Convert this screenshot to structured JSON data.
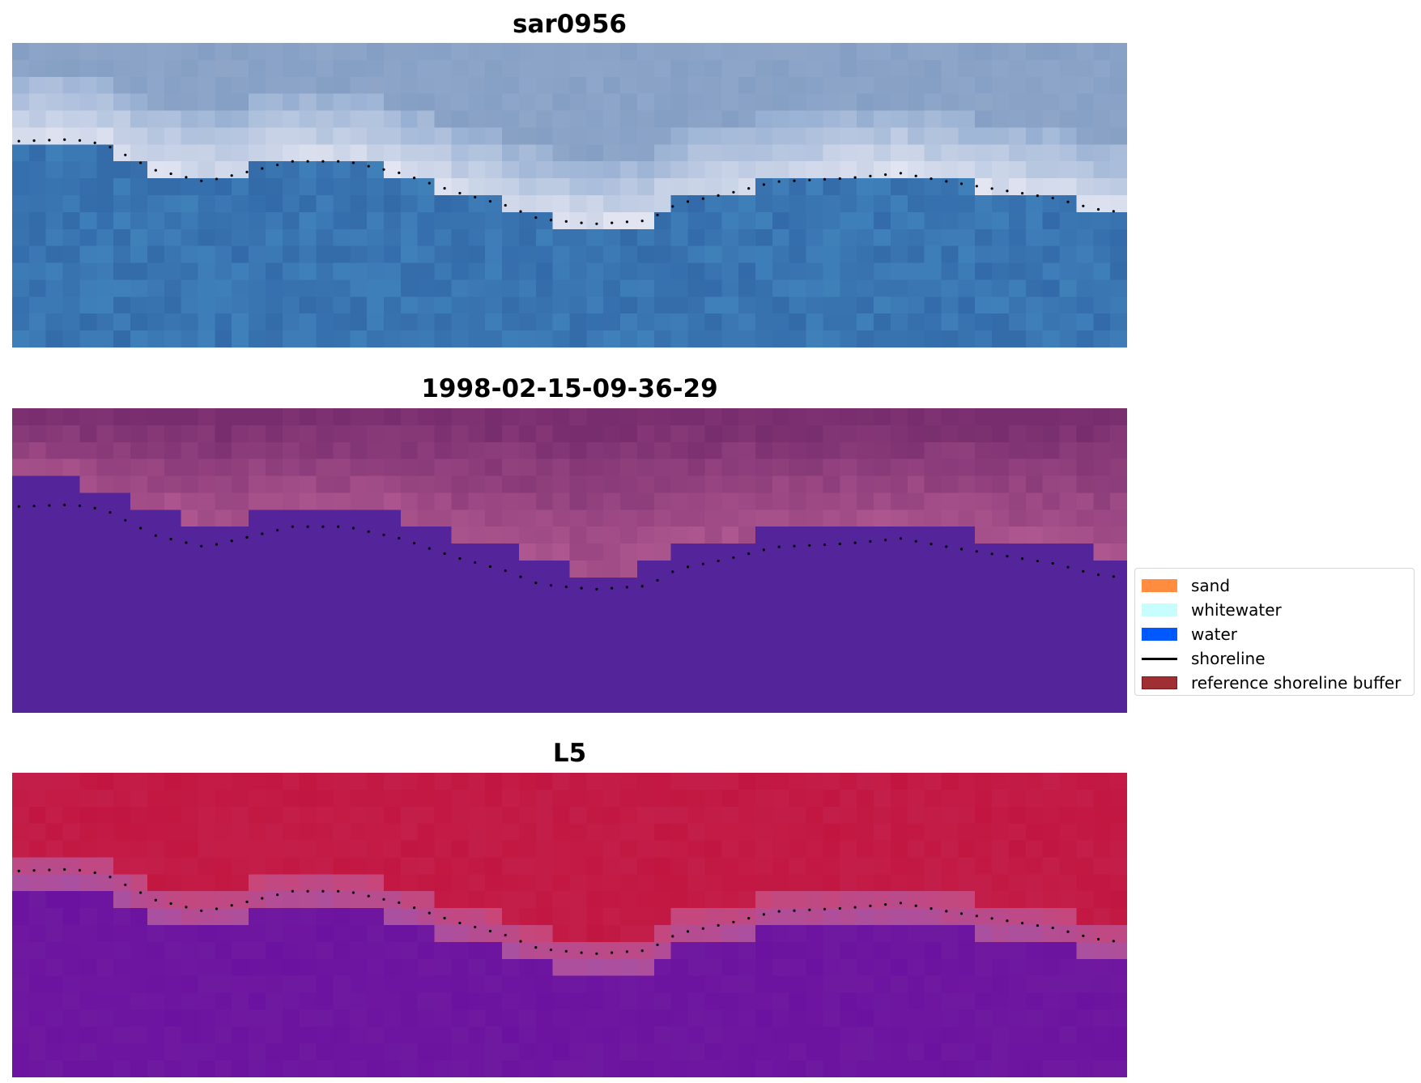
{
  "panels": [
    {
      "title": "sar0956",
      "kind": "rgb"
    },
    {
      "title": "1998-02-15-09-36-29",
      "kind": "classified"
    },
    {
      "title": "L5",
      "kind": "index"
    }
  ],
  "image_grid": {
    "cols": 66,
    "rows": 18
  },
  "classified_water_top_row": [
    [
      0,
      4,
      4
    ],
    [
      4,
      7,
      5
    ],
    [
      7,
      10,
      6
    ],
    [
      10,
      14,
      7
    ],
    [
      14,
      23,
      6
    ],
    [
      23,
      26,
      7
    ],
    [
      26,
      30,
      8
    ],
    [
      30,
      33,
      9
    ],
    [
      33,
      37,
      10
    ],
    [
      37,
      39,
      9
    ],
    [
      39,
      44,
      8
    ],
    [
      44,
      57,
      7
    ],
    [
      57,
      64,
      8
    ],
    [
      64,
      66,
      9
    ]
  ],
  "shoreline_pixels": [
    [
      0.4,
      5.8
    ],
    [
      3.6,
      5.7
    ],
    [
      5.5,
      6.0
    ],
    [
      8.4,
      7.5
    ],
    [
      11.4,
      8.2
    ],
    [
      13.6,
      7.7
    ],
    [
      16.6,
      7.0
    ],
    [
      19.8,
      7.0
    ],
    [
      23.0,
      7.7
    ],
    [
      26.2,
      8.8
    ],
    [
      29.2,
      9.6
    ],
    [
      31.2,
      10.4
    ],
    [
      34.4,
      10.7
    ],
    [
      37.6,
      10.5
    ],
    [
      39.4,
      9.5
    ],
    [
      42.4,
      8.9
    ],
    [
      45.2,
      8.2
    ],
    [
      49.4,
      8.0
    ],
    [
      52.6,
      7.7
    ],
    [
      55.4,
      8.2
    ],
    [
      58.6,
      8.7
    ],
    [
      61.8,
      9.2
    ],
    [
      64.0,
      9.8
    ],
    [
      65.6,
      10.0
    ]
  ],
  "legend": {
    "items": [
      {
        "label": "sand",
        "type": "patch",
        "color": "#ff8c3f"
      },
      {
        "label": "whitewater",
        "type": "patch",
        "color": "#c8fdfd"
      },
      {
        "label": "water",
        "type": "patch",
        "color": "#0059ff"
      },
      {
        "label": "shoreline",
        "type": "line",
        "color": "#000000"
      },
      {
        "label": "reference shoreline buffer",
        "type": "patch",
        "color": "#a02f33",
        "edge": "#7a1a1e"
      }
    ]
  },
  "colors": {
    "classified_water": "#54249a",
    "classified_land": "#a04a86",
    "index_land": "#c0103a",
    "index_water": "#6a10a0"
  }
}
